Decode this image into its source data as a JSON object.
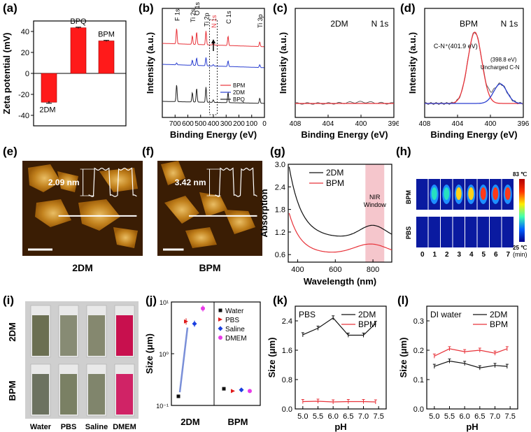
{
  "panel_labels": {
    "a": "(a)",
    "b": "(b)",
    "c": "(c)",
    "d": "(d)",
    "e": "(e)",
    "f": "(f)",
    "g": "(g)",
    "h": "(h)",
    "i": "(i)",
    "j": "(j)",
    "k": "(k)",
    "l": "(l)"
  },
  "chart_data": [
    {
      "id": "a",
      "type": "bar",
      "ylabel": "Zeta potential (mV)",
      "categories": [
        "2DM",
        "BPQ",
        "BPM"
      ],
      "values": [
        -27.5,
        43.5,
        31
      ],
      "errors": [
        1.0,
        0.6,
        0.5
      ],
      "ylim": [
        -50,
        50
      ],
      "yticks": [
        "-40",
        "-20",
        "0",
        "20",
        "40"
      ],
      "bar_color": "#ff1a1a"
    },
    {
      "id": "b",
      "type": "line",
      "xlabel": "Binding Energy (eV)",
      "ylabel": "Intensity (a.u.)",
      "xlim": [
        800,
        0
      ],
      "xticks": [
        "700",
        "600",
        "500",
        "400",
        "300",
        "200",
        "100",
        "0"
      ],
      "peak_labels": [
        "F 1s",
        "Ti 2s",
        "O 1s",
        "Ti 2p",
        "N 1s",
        "C 1s",
        "Ti 3p"
      ],
      "legend": [
        "BPM",
        "2DM",
        "BPQ"
      ],
      "colors": [
        "#e8333a",
        "#2a3fd0",
        "#222222"
      ]
    },
    {
      "id": "c",
      "type": "line",
      "xlabel": "Binding Energy (eV)",
      "ylabel": "Intensity (a.u.)",
      "xlim": [
        408,
        396
      ],
      "xticks": [
        "408",
        "404",
        "400",
        "396"
      ],
      "annotations": [
        "2DM",
        "N 1s"
      ]
    },
    {
      "id": "d",
      "type": "line",
      "xlabel": "Binding Energy (eV)",
      "ylabel": "Intensity (a.u.)",
      "xlim": [
        408,
        396
      ],
      "xticks": [
        "408",
        "404",
        "400",
        "396"
      ],
      "annotations": [
        "BPM",
        "N 1s"
      ],
      "peaks": [
        {
          "label": "C-N⁺(401.9 eV)",
          "center": 401.9,
          "color": "#e8333a"
        },
        {
          "label": "(398.8 eV)",
          "label2": "Uncharged C-N",
          "center": 398.8,
          "color": "#2a3fd0"
        }
      ]
    },
    {
      "id": "g",
      "type": "line",
      "xlabel": "Wavelength (nm)",
      "ylabel": "Absorption",
      "xlim": [
        350,
        900
      ],
      "ylim": [
        0.4,
        3.0
      ],
      "xticks": [
        "400",
        "600",
        "800"
      ],
      "yticks": [
        "0.6",
        "1.2",
        "1.8",
        "2.4",
        "3.0"
      ],
      "legend": [
        "2DM",
        "BPM"
      ],
      "window_label": [
        "NIR",
        "Window"
      ],
      "window_range": [
        760,
        860
      ]
    },
    {
      "id": "h",
      "type": "heatmap",
      "row_labels": [
        "BPM",
        "PBS"
      ],
      "xticks": [
        "0",
        "1",
        "2",
        "3",
        "4",
        "5",
        "6",
        "7"
      ],
      "unit": "(min)",
      "colorbar": [
        "83 ℃",
        "25 ℃"
      ]
    },
    {
      "id": "j",
      "type": "scatter",
      "ylabel": "Size (μm)",
      "groups": [
        "2DM",
        "BPM"
      ],
      "yticks": [
        "10¹",
        "10⁰",
        "10⁻¹"
      ],
      "legend": [
        "Water",
        "PBS",
        "Saline",
        "DMEM"
      ],
      "colors": [
        "#111111",
        "#e01b1b",
        "#1a3fe0",
        "#e83ae8"
      ],
      "values_2DM": [
        0.15,
        4.2,
        3.8,
        7.5
      ],
      "values_BPM": [
        0.21,
        0.19,
        0.2,
        0.19
      ]
    },
    {
      "id": "k",
      "type": "line",
      "title": "PBS",
      "xlabel": "pH",
      "ylabel": "Size (μm)",
      "x": [
        5.0,
        5.5,
        6.0,
        6.5,
        7.0,
        7.4
      ],
      "xticks": [
        "5.0",
        "5.5",
        "6.0",
        "6.5",
        "7.0",
        "7.5"
      ],
      "yticks": [
        "0.0",
        "0.8",
        "1.6",
        "2.4"
      ],
      "ylim": [
        0,
        2.8
      ],
      "series": [
        {
          "name": "2DM",
          "values": [
            2.02,
            2.2,
            2.48,
            2.01,
            2.01,
            2.33
          ]
        },
        {
          "name": "BPM",
          "values": [
            0.2,
            0.21,
            0.19,
            0.2,
            0.2,
            0.19
          ]
        }
      ]
    },
    {
      "id": "l",
      "type": "line",
      "title": "DI water",
      "xlabel": "pH",
      "ylabel": "Size (μm)",
      "x": [
        5.0,
        5.5,
        6.0,
        6.5,
        7.0,
        7.4
      ],
      "xticks": [
        "5.0",
        "5.5",
        "6.0",
        "6.5",
        "7.0",
        "7.5"
      ],
      "yticks": [
        "0.0",
        "0.1",
        "0.2",
        "0.3"
      ],
      "ylim": [
        0,
        0.35
      ],
      "series": [
        {
          "name": "2DM",
          "values": [
            0.145,
            0.163,
            0.155,
            0.14,
            0.148,
            0.145
          ]
        },
        {
          "name": "BPM",
          "values": [
            0.18,
            0.205,
            0.195,
            0.2,
            0.19,
            0.205
          ]
        }
      ]
    }
  ],
  "afm": {
    "e_height": "2.09 nm",
    "f_height": "3.42 nm",
    "e_caption": "2DM",
    "f_caption": "BPM"
  },
  "vials": {
    "rows": [
      "2DM",
      "BPM"
    ],
    "cols": [
      "Water",
      "PBS",
      "Saline",
      "DMEM"
    ]
  }
}
